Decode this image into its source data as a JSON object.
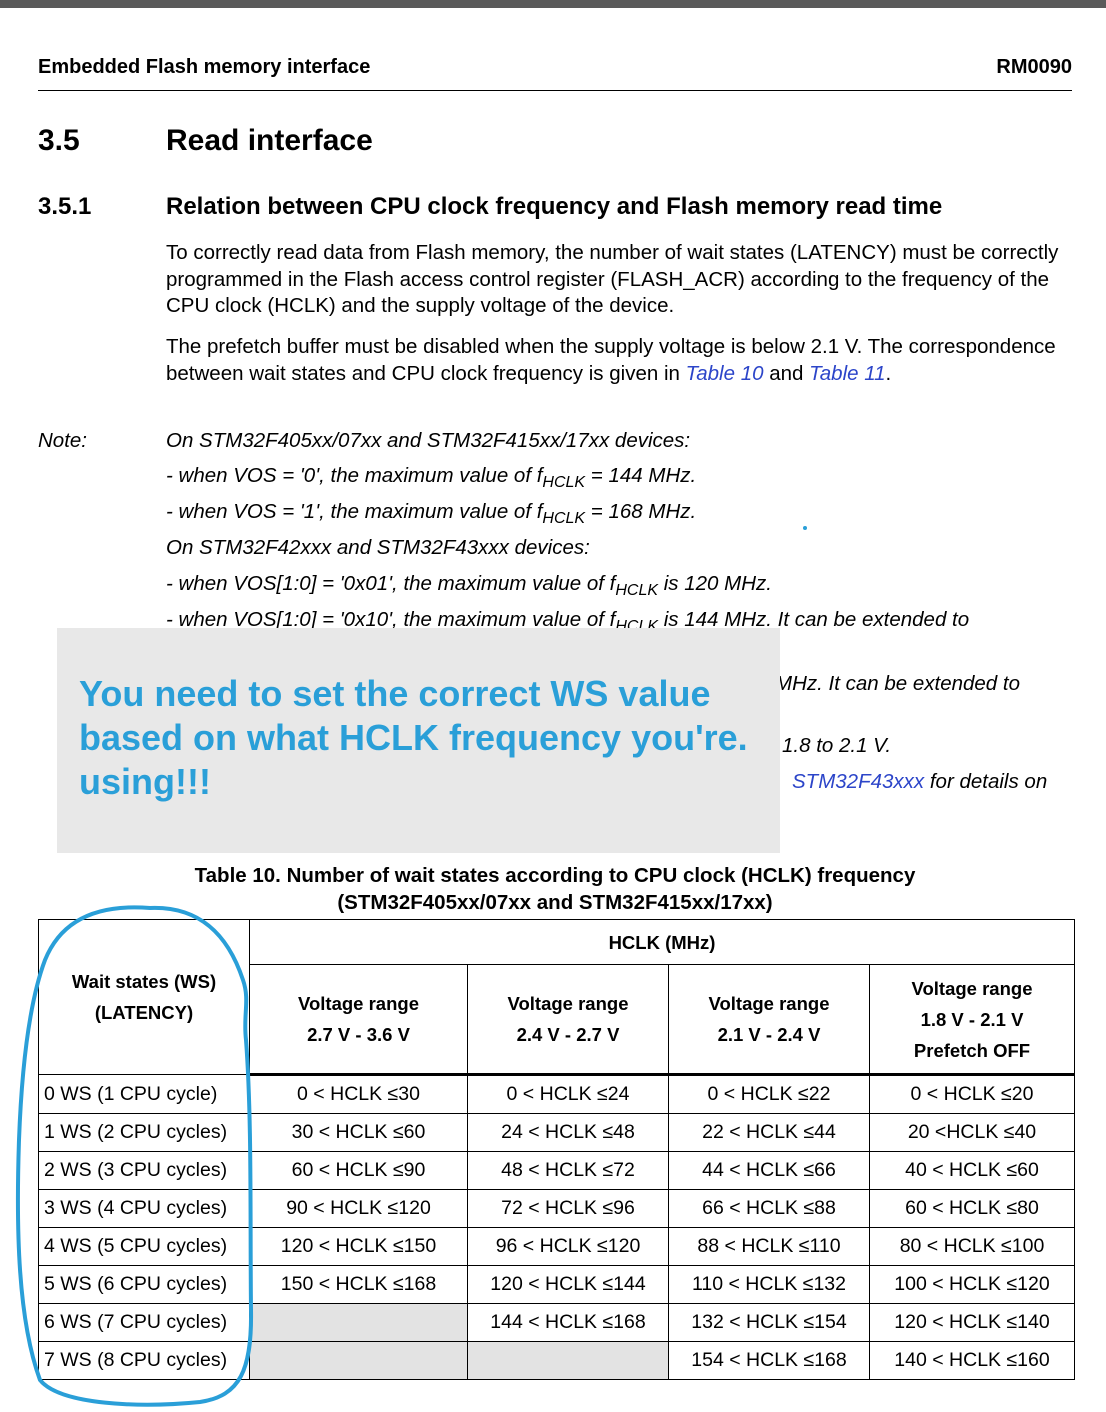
{
  "header": {
    "left": "Embedded Flash memory interface",
    "right": "RM0090"
  },
  "section": {
    "number": "3.5",
    "title": "Read interface"
  },
  "subsection": {
    "number": "3.5.1",
    "title": "Relation between CPU clock frequency and Flash memory read time"
  },
  "paragraph1": "To correctly read data from Flash memory, the number of wait states (LATENCY) must be correctly programmed in the Flash access control register (FLASH_ACR) according to the frequency of the CPU clock (HCLK) and the supply voltage of the device.",
  "paragraph2": {
    "text_before": "The prefetch buffer must be disabled when the supply voltage is below 2.1 V. The correspondence between wait states and CPU clock frequency is given in ",
    "link1": "Table 10",
    "text_mid": " and ",
    "link2": "Table 11",
    "text_after": "."
  },
  "note": {
    "label": "Note:",
    "line1": "On STM32F405xx/07xx and STM32F415xx/17xx devices:",
    "line2_pre": "- when VOS = '0', the maximum value of f",
    "line2_sub": "HCLK",
    "line2_post": " = 144 MHz.",
    "line3_pre": "- when VOS = '1', the maximum value of f",
    "line3_sub": "HCLK",
    "line3_post": " = 168 MHz.",
    "line4": "On STM32F42xxx and STM32F43xxx devices:",
    "line5_pre": "- when VOS[1:0] = '0x01', the maximum value of f",
    "line5_sub": "HCLK",
    "line5_post": " is 120 MHz.",
    "line6_pre": "- when VOS[1:0] = '0x10', the maximum value of f",
    "line6_sub": "HCLK",
    "line6_post": " is 144 MHz. It can be extended to",
    "frag1": "MHz. It can be extended to",
    "frag2": "1.8 to 2.1 V.",
    "frag3_link": "STM32F43xxx",
    "frag3_text": " for details on"
  },
  "overlay": {
    "text": "You need to set the correct WS value based on what HCLK frequency you're. using!!!"
  },
  "table": {
    "caption_line1": "Table 10. Number of wait states according to CPU clock (HCLK) frequency",
    "caption_line2": "(STM32F405xx/07xx and STM32F415xx/17xx)",
    "ws_header_line1": "Wait states (WS)",
    "ws_header_line2": "(LATENCY)",
    "hclk_header": "HCLK (MHz)",
    "col1_line1": "Voltage range",
    "col1_line2": "2.7 V - 3.6 V",
    "col2_line1": "Voltage range",
    "col2_line2": "2.4 V - 2.7 V",
    "col3_line1": "Voltage range",
    "col3_line2": "2.1 V - 2.4 V",
    "col4_line1": "Voltage range",
    "col4_line2": "1.8 V - 2.1 V",
    "col4_line3": "Prefetch OFF",
    "rows": [
      {
        "ws": "0 WS (1 CPU cycle)",
        "c1": "0 < HCLK ≤30",
        "c2": "0 < HCLK ≤24",
        "c3": "0 < HCLK ≤22",
        "c4": "0 < HCLK ≤20"
      },
      {
        "ws": "1 WS (2 CPU cycles)",
        "c1": "30 < HCLK ≤60",
        "c2": "24 < HCLK ≤48",
        "c3": "22 < HCLK ≤44",
        "c4": "20 <HCLK ≤40"
      },
      {
        "ws": "2 WS (3 CPU cycles)",
        "c1": "60 < HCLK ≤90",
        "c2": "48 < HCLK ≤72",
        "c3": "44 < HCLK ≤66",
        "c4": "40 < HCLK ≤60"
      },
      {
        "ws": "3 WS (4 CPU cycles)",
        "c1": "90 < HCLK ≤120",
        "c2": "72 < HCLK ≤96",
        "c3": "66 < HCLK ≤88",
        "c4": "60 < HCLK ≤80"
      },
      {
        "ws": "4 WS (5 CPU cycles)",
        "c1": "120 < HCLK ≤150",
        "c2": "96 < HCLK ≤120",
        "c3": "88 < HCLK ≤110",
        "c4": "80 < HCLK ≤100"
      },
      {
        "ws": "5 WS (6 CPU cycles)",
        "c1": "150 < HCLK ≤168",
        "c2": "120 < HCLK ≤144",
        "c3": "110 < HCLK ≤132",
        "c4": "100 < HCLK ≤120"
      },
      {
        "ws": "6 WS (7 CPU cycles)",
        "c1": "",
        "c2": "144 < HCLK ≤168",
        "c3": "132 < HCLK ≤154",
        "c4": "120 < HCLK ≤140"
      },
      {
        "ws": "7 WS (8 CPU cycles)",
        "c1": "",
        "c2": "",
        "c3": "154 < HCLK ≤168",
        "c4": "140 < HCLK ≤160"
      }
    ]
  },
  "colors": {
    "annotation": "#2a9fd8",
    "link": "#2c45c9",
    "overlay_bg": "#e8e8e8",
    "empty_cell": "#e3e3e3"
  }
}
